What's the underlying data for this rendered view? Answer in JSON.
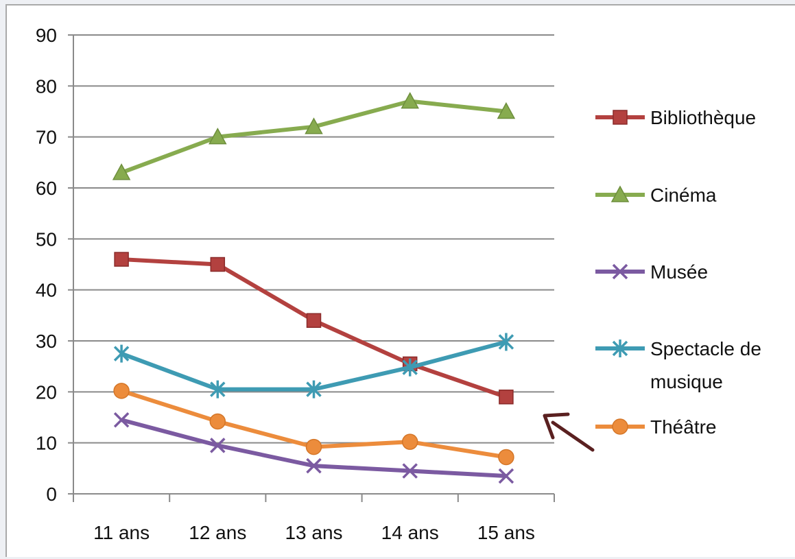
{
  "chart_data": {
    "type": "line",
    "title": "",
    "xlabel": "",
    "ylabel": "",
    "categories": [
      "11 ans",
      "12 ans",
      "13 ans",
      "14 ans",
      "15 ans"
    ],
    "yticks": [
      "0",
      "10",
      "20",
      "30",
      "40",
      "50",
      "60",
      "70",
      "80",
      "90"
    ],
    "ylim": [
      0,
      90
    ],
    "grid": true,
    "legend_position": "right",
    "series": [
      {
        "name": "Bibliothèque",
        "legend_lines": [
          "Bibliothèque"
        ],
        "color": "#b3413f",
        "marker": "square",
        "values": [
          46,
          45,
          34,
          25.5,
          19
        ]
      },
      {
        "name": "Cinéma",
        "legend_lines": [
          "Cinéma"
        ],
        "color": "#87ab4f",
        "marker": "triangle",
        "values": [
          63,
          70,
          72,
          77,
          75
        ]
      },
      {
        "name": "Musée",
        "legend_lines": [
          "Musée"
        ],
        "color": "#7b5aa1",
        "marker": "x",
        "values": [
          14.5,
          9.5,
          5.5,
          4.5,
          3.5
        ]
      },
      {
        "name": "Spectacle de musique",
        "legend_lines": [
          "Spectacle de",
          "musique"
        ],
        "color": "#3e9bb3",
        "marker": "star",
        "values": [
          27.5,
          20.5,
          20.5,
          24.8,
          29.8
        ]
      },
      {
        "name": "Théâtre",
        "legend_lines": [
          "Théâtre"
        ],
        "color": "#ec8c3c",
        "marker": "circle",
        "values": [
          20.2,
          14.2,
          9.2,
          10.2,
          7.2
        ]
      }
    ],
    "annotation": {
      "type": "arrow",
      "color": "#5a2020",
      "points_to": "Bibliothèque 15 ans"
    }
  }
}
